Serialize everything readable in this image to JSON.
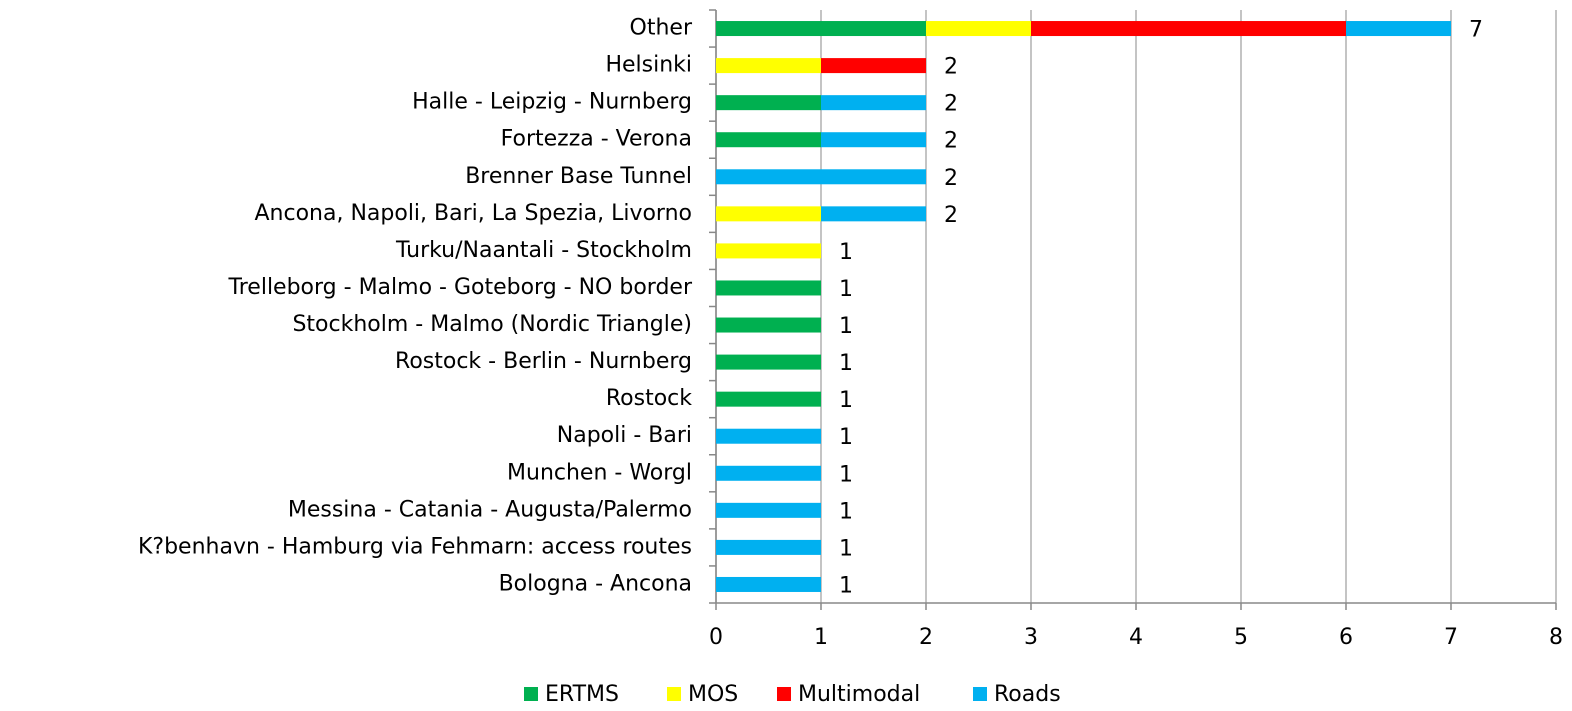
{
  "chart_data": {
    "type": "stacked_barh",
    "categories": [
      "Other",
      "Helsinki",
      "Halle - Leipzig - Nurnberg",
      "Fortezza - Verona",
      "Brenner Base Tunnel",
      "Ancona, Napoli, Bari, La Spezia, Livorno",
      "Turku/Naantali - Stockholm",
      "Trelleborg - Malmo - Goteborg - NO border",
      "Stockholm - Malmo (Nordic Triangle)",
      "Rostock - Berlin - Nurnberg",
      "Rostock",
      "Napoli - Bari",
      "Munchen - Worgl",
      "Messina - Catania - Augusta/Palermo",
      "K?benhavn - Hamburg via Fehmarn: access routes",
      "Bologna - Ancona"
    ],
    "series": [
      {
        "name": "ERTMS",
        "color": "#00b050",
        "values": [
          2,
          0,
          1,
          1,
          0,
          0,
          0,
          1,
          1,
          1,
          1,
          0,
          0,
          0,
          0,
          0
        ]
      },
      {
        "name": "MOS",
        "color": "#ffff00",
        "values": [
          1,
          1,
          0,
          0,
          0,
          1,
          1,
          0,
          0,
          0,
          0,
          0,
          0,
          0,
          0,
          0
        ]
      },
      {
        "name": "Multimodal",
        "color": "#ff0000",
        "values": [
          3,
          1,
          0,
          0,
          0,
          0,
          0,
          0,
          0,
          0,
          0,
          0,
          0,
          0,
          0,
          0
        ]
      },
      {
        "name": "Roads",
        "color": "#00b0f0",
        "values": [
          1,
          0,
          1,
          1,
          2,
          1,
          0,
          0,
          0,
          0,
          0,
          1,
          1,
          1,
          1,
          1
        ]
      }
    ],
    "totals": [
      7,
      2,
      2,
      2,
      2,
      2,
      1,
      1,
      1,
      1,
      1,
      1,
      1,
      1,
      1,
      1
    ],
    "xlim": [
      0,
      8
    ],
    "xticks": [
      0,
      1,
      2,
      3,
      4,
      5,
      6,
      7,
      8
    ],
    "grid": true,
    "legend": "bottom"
  }
}
